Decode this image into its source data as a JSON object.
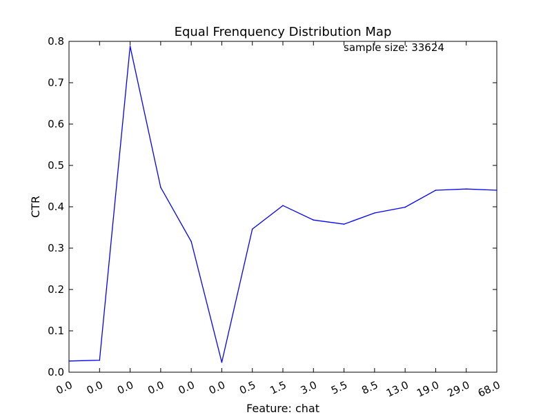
{
  "chart_data": {
    "type": "line",
    "title": "Equal Frenquency Distribution Map",
    "xlabel": "Feature: chat",
    "ylabel": "CTR",
    "categories": [
      "0.0",
      "0.0",
      "0.0",
      "0.0",
      "0.0",
      "0.0",
      "0.5",
      "1.5",
      "3.0",
      "5.5",
      "8.5",
      "13.0",
      "19.0",
      "29.0",
      "68.0"
    ],
    "series": [
      {
        "values": [
          0.027,
          0.029,
          0.788,
          0.447,
          0.316,
          0.024,
          0.346,
          0.403,
          0.368,
          0.358,
          0.385,
          0.399,
          0.44,
          0.443,
          0.44
        ],
        "color": "#0000ff"
      }
    ],
    "ylim": [
      0.0,
      0.8
    ],
    "yticks": [
      "0.0",
      "0.1",
      "0.2",
      "0.3",
      "0.4",
      "0.5",
      "0.6",
      "0.7",
      "0.8"
    ],
    "annotation": "sample size: 33624",
    "grid": false,
    "x_tick_rotation": "rotated"
  }
}
